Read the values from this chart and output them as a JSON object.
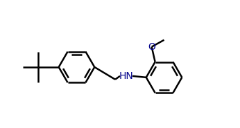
{
  "background_color": "#ffffff",
  "line_color": "#000000",
  "text_color": "#00008b",
  "bond_width": 1.8,
  "font_size": 10,
  "nh_label": "HN",
  "o_label": "O"
}
